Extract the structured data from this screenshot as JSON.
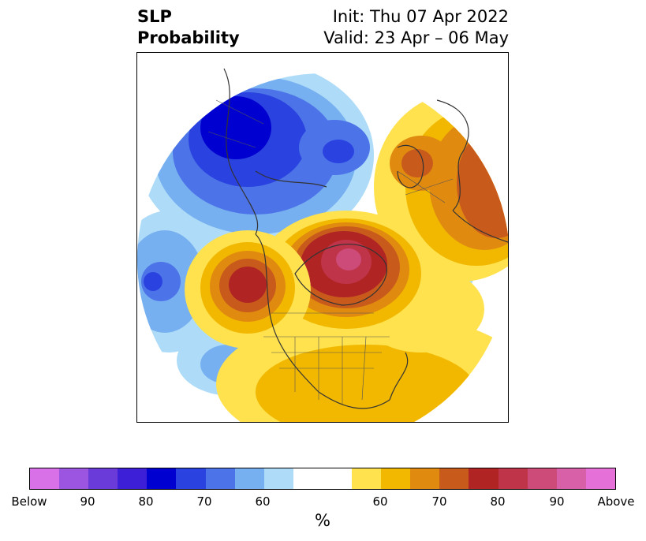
{
  "title": {
    "left_line1": "SLP",
    "left_line2": "Probability",
    "init": "Init: Thu 07 Apr 2022",
    "valid": "Valid: 23 Apr – 06 May"
  },
  "colorbar": {
    "colors": [
      "#d870e8",
      "#9b55e0",
      "#6a3bd8",
      "#3c1fd6",
      "#0000d0",
      "#2a42e0",
      "#4c74e8",
      "#77b0f0",
      "#aedcf8",
      "#ffffff",
      "#ffe24d",
      "#f2b800",
      "#e08a10",
      "#c85a1c",
      "#b02424",
      "#c0344a",
      "#cc4b78",
      "#d860a8",
      "#e470d8"
    ],
    "ticks": [
      "Below",
      "90",
      "80",
      "70",
      "60",
      "60",
      "70",
      "80",
      "90",
      "Above"
    ],
    "unit": "%"
  }
}
